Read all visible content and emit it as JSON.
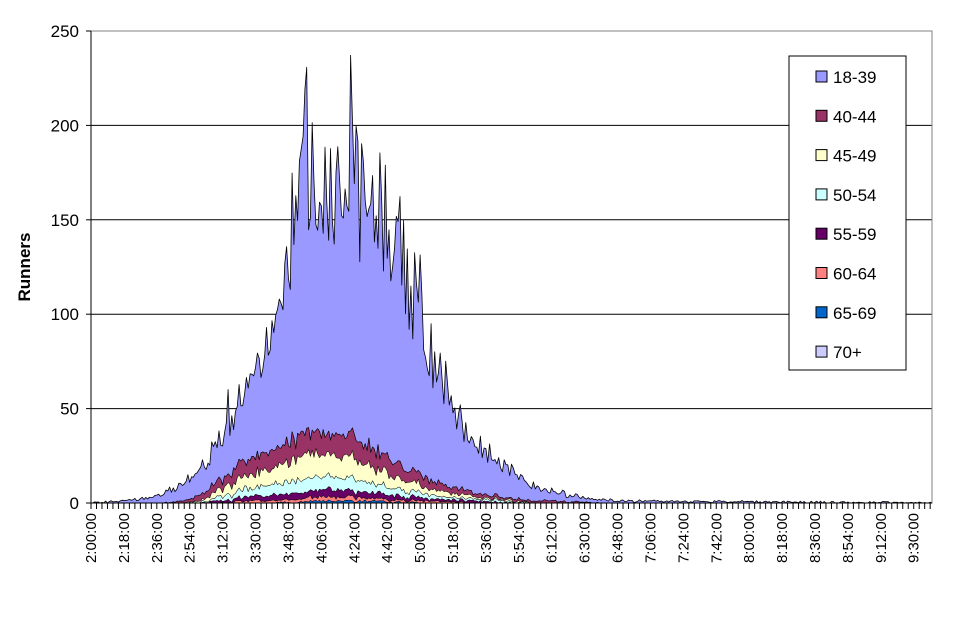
{
  "chart_data": {
    "type": "area",
    "stacked": true,
    "ylabel": "Runners",
    "xlabel": "",
    "ylim": [
      0,
      250
    ],
    "yticks": [
      0,
      50,
      100,
      150,
      200,
      250
    ],
    "grid": true,
    "legend_position": "right",
    "x_tick_labels": [
      "2:00:00",
      "2:18:00",
      "2:36:00",
      "2:54:00",
      "3:12:00",
      "3:30:00",
      "3:48:00",
      "4:06:00",
      "4:24:00",
      "4:42:00",
      "5:00:00",
      "5:18:00",
      "5:36:00",
      "5:54:00",
      "6:12:00",
      "6:30:00",
      "6:48:00",
      "7:06:00",
      "7:24:00",
      "7:42:00",
      "8:00:00",
      "8:18:00",
      "8:36:00",
      "8:54:00",
      "9:12:00",
      "9:30:00"
    ],
    "x_range_minutes": [
      120,
      580
    ],
    "x_tick_step_minutes": 18,
    "x_minor_step_minutes": 3,
    "sample_step_minutes": 1,
    "seed": 20240,
    "series": [
      {
        "name": "18-39",
        "color": "#9999ff",
        "profile": [
          [
            120,
            0
          ],
          [
            135,
            1
          ],
          [
            145,
            2
          ],
          [
            160,
            5
          ],
          [
            170,
            9
          ],
          [
            178,
            14
          ],
          [
            183,
            16
          ],
          [
            190,
            20
          ],
          [
            200,
            30
          ],
          [
            210,
            45
          ],
          [
            220,
            68
          ],
          [
            226,
            88
          ],
          [
            230,
            110
          ],
          [
            232,
            125
          ],
          [
            235,
            135
          ],
          [
            237,
            128
          ],
          [
            240,
            138
          ],
          [
            245,
            133
          ],
          [
            250,
            132
          ],
          [
            255,
            133
          ],
          [
            260,
            135
          ],
          [
            265,
            132
          ],
          [
            270,
            128
          ],
          [
            275,
            132
          ],
          [
            280,
            130
          ],
          [
            285,
            120
          ],
          [
            290,
            110
          ],
          [
            295,
            95
          ],
          [
            300,
            85
          ],
          [
            305,
            72
          ],
          [
            310,
            62
          ],
          [
            315,
            50
          ],
          [
            320,
            40
          ],
          [
            330,
            28
          ],
          [
            340,
            20
          ],
          [
            350,
            14
          ],
          [
            360,
            9
          ],
          [
            370,
            6
          ],
          [
            380,
            4
          ],
          [
            395,
            2
          ],
          [
            410,
            1
          ],
          [
            430,
            1
          ],
          [
            580,
            0
          ]
        ]
      },
      {
        "name": "40-44",
        "color": "#993366",
        "profile": [
          [
            120,
            0
          ],
          [
            160,
            0
          ],
          [
            170,
            1
          ],
          [
            180,
            3
          ],
          [
            190,
            5
          ],
          [
            200,
            7
          ],
          [
            210,
            9
          ],
          [
            220,
            10
          ],
          [
            230,
            11
          ],
          [
            240,
            11
          ],
          [
            250,
            11
          ],
          [
            260,
            11
          ],
          [
            270,
            10
          ],
          [
            280,
            9
          ],
          [
            290,
            7
          ],
          [
            300,
            6
          ],
          [
            310,
            4
          ],
          [
            320,
            3
          ],
          [
            330,
            2
          ],
          [
            345,
            1
          ],
          [
            370,
            1
          ],
          [
            400,
            0
          ],
          [
            580,
            0
          ]
        ]
      },
      {
        "name": "45-49",
        "color": "#ffffcc",
        "profile": [
          [
            120,
            0
          ],
          [
            170,
            0
          ],
          [
            180,
            1
          ],
          [
            190,
            4
          ],
          [
            200,
            6
          ],
          [
            210,
            8
          ],
          [
            220,
            9
          ],
          [
            230,
            11
          ],
          [
            240,
            12
          ],
          [
            250,
            12
          ],
          [
            260,
            11
          ],
          [
            270,
            10
          ],
          [
            280,
            8
          ],
          [
            290,
            6
          ],
          [
            300,
            4
          ],
          [
            310,
            3
          ],
          [
            320,
            2
          ],
          [
            335,
            1
          ],
          [
            360,
            0
          ],
          [
            580,
            0
          ]
        ]
      },
      {
        "name": "50-54",
        "color": "#ccffff",
        "profile": [
          [
            120,
            0
          ],
          [
            175,
            0
          ],
          [
            185,
            1
          ],
          [
            195,
            3
          ],
          [
            205,
            4
          ],
          [
            215,
            5
          ],
          [
            225,
            6
          ],
          [
            235,
            7
          ],
          [
            245,
            7
          ],
          [
            255,
            7
          ],
          [
            265,
            6
          ],
          [
            275,
            5
          ],
          [
            285,
            4
          ],
          [
            295,
            3
          ],
          [
            305,
            2
          ],
          [
            320,
            1
          ],
          [
            340,
            1
          ],
          [
            360,
            0
          ],
          [
            580,
            0
          ]
        ]
      },
      {
        "name": "55-59",
        "color": "#660066",
        "profile": [
          [
            120,
            0
          ],
          [
            180,
            0
          ],
          [
            190,
            1
          ],
          [
            205,
            2
          ],
          [
            220,
            3
          ],
          [
            235,
            3
          ],
          [
            250,
            4
          ],
          [
            265,
            3
          ],
          [
            280,
            3
          ],
          [
            295,
            2
          ],
          [
            310,
            1
          ],
          [
            330,
            1
          ],
          [
            350,
            0
          ],
          [
            580,
            0
          ]
        ]
      },
      {
        "name": "60-64",
        "color": "#ff8080",
        "profile": [
          [
            120,
            0
          ],
          [
            190,
            0
          ],
          [
            205,
            1
          ],
          [
            220,
            1
          ],
          [
            235,
            2
          ],
          [
            250,
            2
          ],
          [
            265,
            2
          ],
          [
            280,
            1
          ],
          [
            300,
            1
          ],
          [
            330,
            0
          ],
          [
            580,
            0
          ]
        ]
      },
      {
        "name": "65-69",
        "color": "#0066cc",
        "profile": [
          [
            120,
            0
          ],
          [
            220,
            0
          ],
          [
            240,
            1
          ],
          [
            270,
            1
          ],
          [
            300,
            0
          ],
          [
            580,
            0
          ]
        ]
      },
      {
        "name": "70+",
        "color": "#ccccff",
        "profile": [
          [
            120,
            0
          ],
          [
            580,
            0
          ]
        ]
      }
    ]
  }
}
